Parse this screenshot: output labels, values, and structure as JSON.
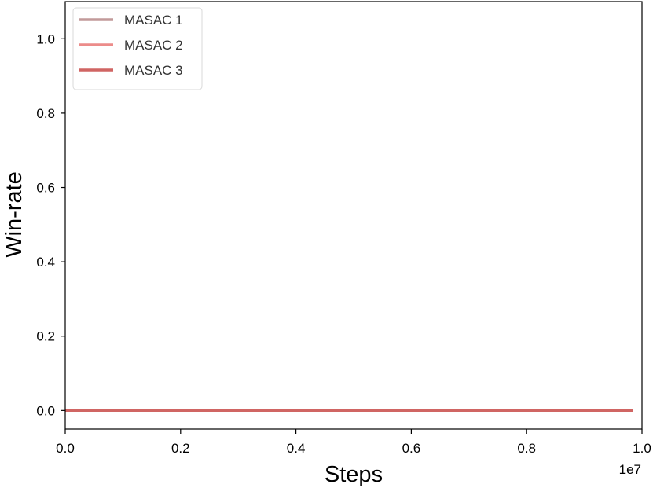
{
  "chart_data": {
    "type": "line",
    "xlabel": "Steps",
    "ylabel": "Win-rate",
    "x_offset_label": "1e7",
    "xlim": [
      0.0,
      1.0
    ],
    "ylim": [
      -0.05,
      1.1
    ],
    "x_ticks": [
      0.0,
      0.2,
      0.4,
      0.6,
      0.8,
      1.0
    ],
    "x_tick_labels": [
      "0.0",
      "0.2",
      "0.4",
      "0.6",
      "0.8",
      "1.0"
    ],
    "y_ticks": [
      0.0,
      0.2,
      0.4,
      0.6,
      0.8,
      1.0
    ],
    "y_tick_labels": [
      "0.0",
      "0.2",
      "0.4",
      "0.6",
      "0.8",
      "1.0"
    ],
    "grid": false,
    "legend_position": "top-left",
    "series": [
      {
        "name": "MASAC 1",
        "color": "#c29a9a",
        "x": [
          0.0,
          0.25,
          0.5,
          0.75,
          0.985
        ],
        "y": [
          0.0,
          0.0,
          0.0,
          0.0,
          0.0
        ]
      },
      {
        "name": "MASAC 2",
        "color": "#ec8c8a",
        "x": [
          0.0,
          0.25,
          0.5,
          0.75,
          0.985
        ],
        "y": [
          0.0,
          0.0,
          0.0,
          0.0,
          0.0
        ]
      },
      {
        "name": "MASAC 3",
        "color": "#d06563",
        "x": [
          0.0,
          0.25,
          0.5,
          0.75,
          0.985
        ],
        "y": [
          0.0,
          0.0,
          0.0,
          0.0,
          0.0
        ]
      }
    ]
  }
}
